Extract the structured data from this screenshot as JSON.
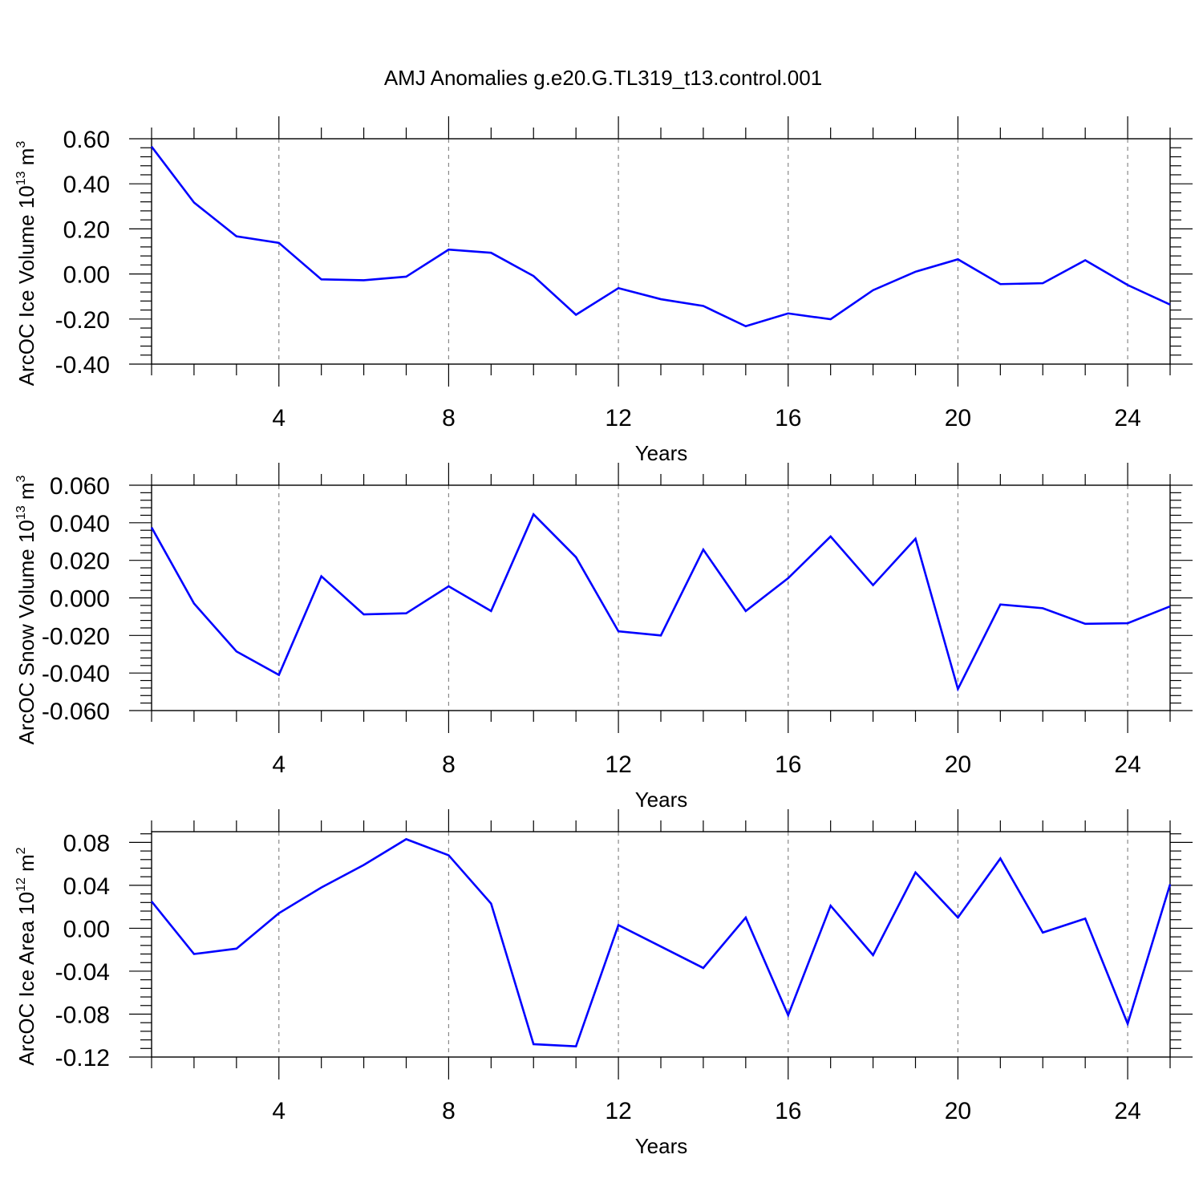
{
  "figure_title": "AMJ Anomalies g.e20.G.TL319_t13.control.001",
  "line_color": "#0000ff",
  "chart_data": [
    {
      "type": "line",
      "ylabel_main": "ArcOC Ice Volume 10",
      "ylabel_exp": "13",
      "ylabel_unit": " m",
      "ylabel_unit_exp": "3",
      "xlabel": "Years",
      "xlim": [
        1,
        25
      ],
      "ylim": [
        -0.4,
        0.6
      ],
      "yticks": [
        -0.4,
        -0.2,
        0.0,
        0.2,
        0.4,
        0.6
      ],
      "ytick_labels": [
        "-0.40",
        "-0.20",
        "0.00",
        "0.20",
        "0.40",
        "0.60"
      ],
      "xticks": [
        4,
        8,
        12,
        16,
        20,
        24
      ],
      "xtick_labels": [
        "4",
        "8",
        "12",
        "16",
        "20",
        "24"
      ],
      "x": [
        1,
        2,
        3,
        4,
        5,
        6,
        7,
        8,
        9,
        10,
        11,
        12,
        13,
        14,
        15,
        16,
        17,
        18,
        19,
        20,
        21,
        22,
        23,
        24,
        25
      ],
      "values": [
        0.565,
        0.317,
        0.167,
        0.138,
        -0.024,
        -0.028,
        -0.012,
        0.108,
        0.094,
        -0.009,
        -0.181,
        -0.063,
        -0.112,
        -0.142,
        -0.232,
        -0.175,
        -0.201,
        -0.072,
        0.01,
        0.065,
        -0.045,
        -0.041,
        0.061,
        -0.049,
        -0.136
      ]
    },
    {
      "type": "line",
      "ylabel_main": "ArcOC Snow Volume 10",
      "ylabel_exp": "13",
      "ylabel_unit": " m",
      "ylabel_unit_exp": "3",
      "xlabel": "Years",
      "xlim": [
        1,
        25
      ],
      "ylim": [
        -0.06,
        0.06
      ],
      "yticks": [
        -0.06,
        -0.04,
        -0.02,
        0.0,
        0.02,
        0.04,
        0.06
      ],
      "ytick_labels": [
        "-0.060",
        "-0.040",
        "-0.020",
        "0.000",
        "0.020",
        "0.040",
        "0.060"
      ],
      "xticks": [
        4,
        8,
        12,
        16,
        20,
        24
      ],
      "xtick_labels": [
        "4",
        "8",
        "12",
        "16",
        "20",
        "24"
      ],
      "x": [
        1,
        2,
        3,
        4,
        5,
        6,
        7,
        8,
        9,
        10,
        11,
        12,
        13,
        14,
        15,
        16,
        17,
        18,
        19,
        20,
        21,
        22,
        23,
        24,
        25
      ],
      "values": [
        0.0375,
        -0.003,
        -0.0285,
        -0.041,
        0.0115,
        -0.0088,
        -0.0082,
        0.0062,
        -0.007,
        0.0445,
        0.0217,
        -0.0178,
        -0.02,
        0.0257,
        -0.007,
        0.0105,
        0.0327,
        0.0068,
        0.0315,
        -0.0485,
        -0.0035,
        -0.0055,
        -0.0138,
        -0.0135,
        -0.0045
      ]
    },
    {
      "type": "line",
      "ylabel_main": "ArcOC Ice Area 10",
      "ylabel_exp": "12",
      "ylabel_unit": " m",
      "ylabel_unit_exp": "2",
      "xlabel": "Years",
      "xlim": [
        1,
        25
      ],
      "ylim": [
        -0.12,
        0.09
      ],
      "yticks": [
        -0.12,
        -0.08,
        -0.04,
        0.0,
        0.04,
        0.08
      ],
      "ytick_labels": [
        "-0.12",
        "-0.08",
        "-0.04",
        "0.00",
        "0.04",
        "0.08"
      ],
      "xticks": [
        4,
        8,
        12,
        16,
        20,
        24
      ],
      "xtick_labels": [
        "4",
        "8",
        "12",
        "16",
        "20",
        "24"
      ],
      "x": [
        1,
        2,
        3,
        4,
        5,
        6,
        7,
        8,
        9,
        10,
        11,
        12,
        13,
        14,
        15,
        16,
        17,
        18,
        19,
        20,
        21,
        22,
        23,
        24,
        25
      ],
      "values": [
        0.025,
        -0.024,
        -0.019,
        0.014,
        0.038,
        0.059,
        0.083,
        0.068,
        0.023,
        -0.108,
        -0.11,
        0.003,
        -0.017,
        -0.037,
        0.01,
        -0.081,
        0.021,
        -0.025,
        0.052,
        0.01,
        0.065,
        -0.004,
        0.009,
        -0.089,
        0.041
      ]
    }
  ]
}
